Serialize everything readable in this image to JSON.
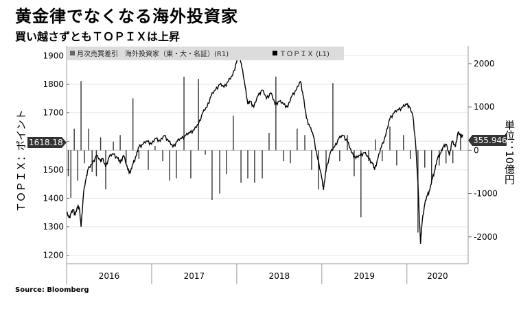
{
  "title": "黄金律でなくなる海外投資家",
  "subtitle": "買い越さずともＴＯＰＩＸは上昇",
  "source": "Source: Bloomberg",
  "chart_data": {
    "type": "line+bar",
    "legend": [
      "月次売買差引　海外投資家（東・大・名証）(R1)",
      "ＴＯＰＩＸ (L1)"
    ],
    "legend_placement": "top-left",
    "left_axis": {
      "title": "ＴＯＰＩＸ：ポイント",
      "ylim": [
        1170,
        1935
      ],
      "ticks": [
        1200,
        1300,
        1400,
        1500,
        1600,
        1700,
        1800,
        1900
      ]
    },
    "right_axis": {
      "title": "単位：10億円",
      "ylim": [
        -2620,
        2410
      ],
      "ticks": [
        "2000",
        "1000",
        "0",
        "-1000",
        "-2000"
      ],
      "tick_values": [
        2000,
        1000,
        0,
        -1000,
        -2000
      ]
    },
    "x_axis": {
      "years": [
        "2016",
        "2017",
        "2018",
        "2019",
        "2020"
      ],
      "xlim": [
        2016.0,
        2020.72
      ]
    },
    "last_values": {
      "topix": "1618.18",
      "foreign_flow": "355.946"
    },
    "colors": {
      "topix": "#000000",
      "bars": "#333333",
      "label_bg": "#333333"
    },
    "topix_series": [
      [
        2016.0,
        1350
      ],
      [
        2016.03,
        1330
      ],
      [
        2016.05,
        1345
      ],
      [
        2016.08,
        1360
      ],
      [
        2016.1,
        1340
      ],
      [
        2016.13,
        1370
      ],
      [
        2016.15,
        1365
      ],
      [
        2016.17,
        1300
      ],
      [
        2016.2,
        1420
      ],
      [
        2016.23,
        1470
      ],
      [
        2016.25,
        1500
      ],
      [
        2016.3,
        1520
      ],
      [
        2016.35,
        1550
      ],
      [
        2016.4,
        1530
      ],
      [
        2016.42,
        1540
      ],
      [
        2016.46,
        1510
      ],
      [
        2016.5,
        1545
      ],
      [
        2016.55,
        1555
      ],
      [
        2016.6,
        1540
      ],
      [
        2016.63,
        1525
      ],
      [
        2016.67,
        1550
      ],
      [
        2016.72,
        1500
      ],
      [
        2016.75,
        1490
      ],
      [
        2016.78,
        1520
      ],
      [
        2016.82,
        1550
      ],
      [
        2016.85,
        1580
      ],
      [
        2016.9,
        1590
      ],
      [
        2016.95,
        1600
      ],
      [
        2017.0,
        1590
      ],
      [
        2017.05,
        1610
      ],
      [
        2017.1,
        1600
      ],
      [
        2017.15,
        1620
      ],
      [
        2017.2,
        1600
      ],
      [
        2017.25,
        1580
      ],
      [
        2017.3,
        1600
      ],
      [
        2017.35,
        1610
      ],
      [
        2017.4,
        1620
      ],
      [
        2017.45,
        1630
      ],
      [
        2017.5,
        1640
      ],
      [
        2017.55,
        1660
      ],
      [
        2017.6,
        1700
      ],
      [
        2017.65,
        1720
      ],
      [
        2017.7,
        1760
      ],
      [
        2017.75,
        1780
      ],
      [
        2017.8,
        1800
      ],
      [
        2017.85,
        1790
      ],
      [
        2017.9,
        1810
      ],
      [
        2017.95,
        1830
      ],
      [
        2018.0,
        1880
      ],
      [
        2018.03,
        1910
      ],
      [
        2018.06,
        1860
      ],
      [
        2018.1,
        1790
      ],
      [
        2018.13,
        1730
      ],
      [
        2018.16,
        1740
      ],
      [
        2018.2,
        1720
      ],
      [
        2018.25,
        1760
      ],
      [
        2018.3,
        1780
      ],
      [
        2018.35,
        1750
      ],
      [
        2018.4,
        1770
      ],
      [
        2018.45,
        1730
      ],
      [
        2018.5,
        1740
      ],
      [
        2018.55,
        1730
      ],
      [
        2018.6,
        1720
      ],
      [
        2018.65,
        1760
      ],
      [
        2018.7,
        1780
      ],
      [
        2018.75,
        1810
      ],
      [
        2018.78,
        1760
      ],
      [
        2018.82,
        1680
      ],
      [
        2018.86,
        1650
      ],
      [
        2018.9,
        1620
      ],
      [
        2018.95,
        1540
      ],
      [
        2019.0,
        1470
      ],
      [
        2019.02,
        1430
      ],
      [
        2019.05,
        1500
      ],
      [
        2019.1,
        1560
      ],
      [
        2019.15,
        1580
      ],
      [
        2019.2,
        1610
      ],
      [
        2019.25,
        1620
      ],
      [
        2019.3,
        1600
      ],
      [
        2019.35,
        1560
      ],
      [
        2019.4,
        1540
      ],
      [
        2019.45,
        1550
      ],
      [
        2019.5,
        1560
      ],
      [
        2019.55,
        1540
      ],
      [
        2019.6,
        1520
      ],
      [
        2019.62,
        1500
      ],
      [
        2019.66,
        1540
      ],
      [
        2019.7,
        1580
      ],
      [
        2019.75,
        1620
      ],
      [
        2019.8,
        1680
      ],
      [
        2019.85,
        1700
      ],
      [
        2019.9,
        1710
      ],
      [
        2019.95,
        1720
      ],
      [
        2020.0,
        1730
      ],
      [
        2020.03,
        1720
      ],
      [
        2020.07,
        1690
      ],
      [
        2020.1,
        1600
      ],
      [
        2020.13,
        1450
      ],
      [
        2020.16,
        1240
      ],
      [
        2020.18,
        1320
      ],
      [
        2020.21,
        1380
      ],
      [
        2020.24,
        1410
      ],
      [
        2020.27,
        1430
      ],
      [
        2020.3,
        1470
      ],
      [
        2020.33,
        1500
      ],
      [
        2020.36,
        1540
      ],
      [
        2020.4,
        1560
      ],
      [
        2020.43,
        1580
      ],
      [
        2020.46,
        1590
      ],
      [
        2020.5,
        1550
      ],
      [
        2020.53,
        1600
      ],
      [
        2020.57,
        1580
      ],
      [
        2020.6,
        1630
      ],
      [
        2020.63,
        1620
      ],
      [
        2020.66,
        1618.18
      ]
    ],
    "flow_bars": [
      [
        2016.02,
        -600
      ],
      [
        2016.05,
        -1100
      ],
      [
        2016.09,
        500
      ],
      [
        2016.13,
        -700
      ],
      [
        2016.17,
        1600
      ],
      [
        2016.21,
        -300
      ],
      [
        2016.26,
        500
      ],
      [
        2016.3,
        -500
      ],
      [
        2016.35,
        -600
      ],
      [
        2016.4,
        300
      ],
      [
        2016.46,
        -900
      ],
      [
        2016.55,
        200
      ],
      [
        2016.63,
        350
      ],
      [
        2016.7,
        -300
      ],
      [
        2016.78,
        1200
      ],
      [
        2016.85,
        -200
      ],
      [
        2016.96,
        -450
      ],
      [
        2017.04,
        100
      ],
      [
        2017.13,
        -250
      ],
      [
        2017.21,
        -700
      ],
      [
        2017.29,
        -650
      ],
      [
        2017.38,
        1700
      ],
      [
        2017.46,
        -650
      ],
      [
        2017.55,
        1650
      ],
      [
        2017.63,
        -100
      ],
      [
        2017.71,
        -1150
      ],
      [
        2017.8,
        -1000
      ],
      [
        2017.88,
        -550
      ],
      [
        2017.96,
        800
      ],
      [
        2018.05,
        -750
      ],
      [
        2018.13,
        -650
      ],
      [
        2018.21,
        -750
      ],
      [
        2018.3,
        -650
      ],
      [
        2018.38,
        400
      ],
      [
        2018.46,
        1700
      ],
      [
        2018.55,
        -250
      ],
      [
        2018.63,
        -300
      ],
      [
        2018.71,
        500
      ],
      [
        2018.8,
        350
      ],
      [
        2018.88,
        -450
      ],
      [
        2018.96,
        -900
      ],
      [
        2019.05,
        -500
      ],
      [
        2019.13,
        1550
      ],
      [
        2019.21,
        -250
      ],
      [
        2019.3,
        350
      ],
      [
        2019.38,
        -600
      ],
      [
        2019.46,
        -1550
      ],
      [
        2019.55,
        -250
      ],
      [
        2019.63,
        250
      ],
      [
        2019.71,
        -250
      ],
      [
        2019.8,
        550
      ],
      [
        2019.88,
        -350
      ],
      [
        2019.96,
        350
      ],
      [
        2020.04,
        -200
      ],
      [
        2020.13,
        -1900
      ],
      [
        2020.21,
        -400
      ],
      [
        2020.29,
        -750
      ],
      [
        2020.38,
        -350
      ],
      [
        2020.46,
        -300
      ],
      [
        2020.54,
        -300
      ],
      [
        2020.63,
        356
      ]
    ]
  }
}
